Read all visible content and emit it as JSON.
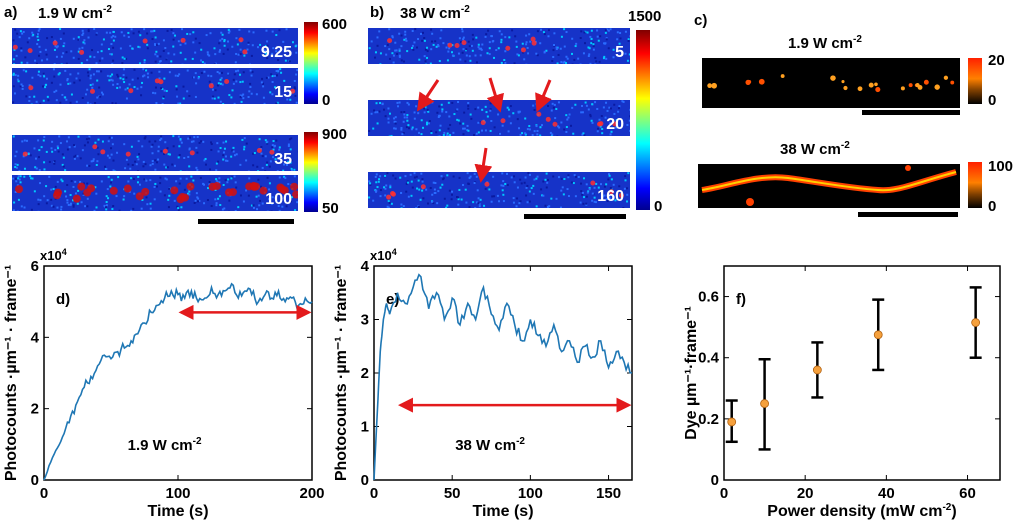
{
  "panels": {
    "a": {
      "label": "a)",
      "title": "1.9 W cm",
      "title_sup": "-2",
      "strips": [
        "9.25",
        "15",
        "35",
        "100"
      ],
      "colorbar_top": {
        "max": "600",
        "min": "0"
      },
      "colorbar_bottom": {
        "max": "900",
        "min": "50"
      }
    },
    "b": {
      "label": "b)",
      "title": "38 W cm",
      "title_sup": "-2",
      "strips": [
        "5",
        "20",
        "160"
      ],
      "colorbar": {
        "max": "1500",
        "min": "0"
      }
    },
    "c": {
      "label": "c)",
      "images": [
        {
          "title": "1.9 W cm",
          "title_sup": "-2",
          "cbar_max": "20",
          "cbar_min": "0"
        },
        {
          "title": "38 W cm",
          "title_sup": "-2",
          "cbar_max": "100",
          "cbar_min": "0"
        }
      ]
    }
  },
  "chart_data": [
    {
      "id": "d",
      "type": "line",
      "panel_label": "d)",
      "annotation": "1.9 W cm",
      "annotation_sup": "-2",
      "xlabel": "Time (s)",
      "ylabel": "Photocounts ·µm⁻¹ · frame⁻¹",
      "y_multiplier": "x10",
      "y_multiplier_sup": "4",
      "xlim": [
        0,
        200
      ],
      "ylim": [
        0,
        6
      ],
      "xticks": [
        "0",
        "100",
        "200"
      ],
      "yticks": [
        "0",
        "2",
        "4",
        "6"
      ],
      "series": [
        {
          "name": "photocounts",
          "color": "#1f77b4",
          "x": [
            0,
            5,
            10,
            15,
            20,
            25,
            30,
            35,
            40,
            45,
            50,
            55,
            60,
            65,
            70,
            75,
            80,
            85,
            90,
            95,
            100,
            105,
            110,
            115,
            120,
            125,
            130,
            135,
            140,
            145,
            150,
            155,
            160,
            165,
            170,
            175,
            180,
            185,
            190,
            195,
            200
          ],
          "y": [
            0,
            0.5,
            0.9,
            1.3,
            1.8,
            2.2,
            2.6,
            2.9,
            3.2,
            3.5,
            3.4,
            3.6,
            3.7,
            3.9,
            4.1,
            4.4,
            4.7,
            4.9,
            5.1,
            5.3,
            5.2,
            5.1,
            5.3,
            5.0,
            5.1,
            5.4,
            5.2,
            5.3,
            5.5,
            5.1,
            5.3,
            5.2,
            5.0,
            5.2,
            5.1,
            5.3,
            5.0,
            5.1,
            4.9,
            5.1,
            5.0
          ]
        }
      ],
      "arrow": {
        "from": 100,
        "to": 200,
        "y": 4.7,
        "color": "#e31a1c"
      }
    },
    {
      "id": "e",
      "type": "line",
      "panel_label": "e)",
      "annotation": "38 W cm",
      "annotation_sup": "-2",
      "xlabel": "Time (s)",
      "ylabel": "Photocounts ·µm⁻¹ · frame⁻¹",
      "y_multiplier": "x10",
      "y_multiplier_sup": "4",
      "xlim": [
        0,
        165
      ],
      "ylim": [
        0,
        4
      ],
      "xticks": [
        "0",
        "50",
        "100",
        "150"
      ],
      "yticks": [
        "0",
        "1",
        "2",
        "3",
        "4"
      ],
      "series": [
        {
          "name": "photocounts",
          "color": "#1f77b4",
          "x": [
            0,
            2,
            4,
            6,
            8,
            10,
            15,
            20,
            25,
            30,
            35,
            40,
            45,
            50,
            55,
            60,
            65,
            70,
            75,
            80,
            85,
            90,
            95,
            100,
            105,
            110,
            115,
            120,
            125,
            130,
            135,
            140,
            145,
            150,
            155,
            160,
            165
          ],
          "y": [
            0,
            1.2,
            2.4,
            3.0,
            3.3,
            3.1,
            3.5,
            3.3,
            3.6,
            3.8,
            3.2,
            3.5,
            3.0,
            3.4,
            2.9,
            3.3,
            3.0,
            3.6,
            3.1,
            2.8,
            3.3,
            2.9,
            2.6,
            3.0,
            2.7,
            2.5,
            2.9,
            2.4,
            2.6,
            2.2,
            2.5,
            2.3,
            2.6,
            2.1,
            2.4,
            2.2,
            2.0
          ]
        }
      ],
      "arrow": {
        "from": 15,
        "to": 165,
        "y": 1.4,
        "color": "#e31a1c"
      }
    },
    {
      "id": "f",
      "type": "scatter",
      "panel_label": "f)",
      "xlabel": "Power density (mW cm",
      "xlabel_sup": "-2",
      "xlabel_end": ")",
      "ylabel": "Dye µm⁻¹·frame⁻¹",
      "xlim": [
        0,
        68
      ],
      "ylim": [
        0,
        0.7
      ],
      "xticks": [
        "0",
        "20",
        "40",
        "60"
      ],
      "yticks": [
        "0",
        "0.2",
        "0.4",
        "0.6"
      ],
      "series": [
        {
          "name": "dye density",
          "color": "#f5a03c",
          "x": [
            1.9,
            10,
            23,
            38,
            62
          ],
          "y": [
            0.19,
            0.25,
            0.36,
            0.475,
            0.515
          ],
          "err_low": [
            0.125,
            0.1,
            0.27,
            0.36,
            0.4
          ],
          "err_high": [
            0.26,
            0.395,
            0.45,
            0.59,
            0.63
          ]
        }
      ]
    }
  ]
}
